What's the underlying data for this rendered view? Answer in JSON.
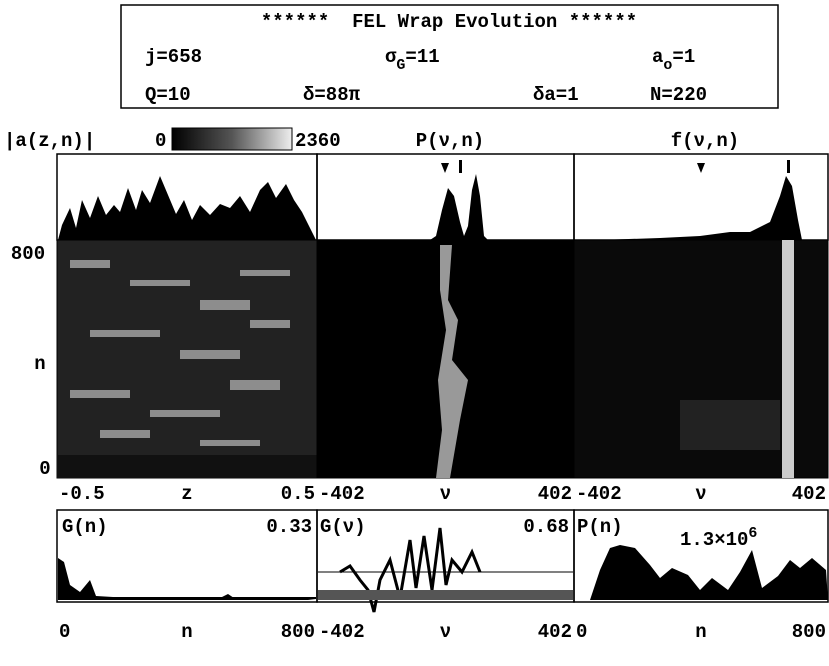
{
  "header": {
    "title": "******  FEL Wrap Evolution ******",
    "j": "j=658",
    "sigma": {
      "base": "σ",
      "sub": "G",
      "rest": "=11"
    },
    "a0": {
      "base": "a",
      "sub": "o",
      "rest": "=1"
    },
    "q": "Q=10",
    "delta": "δ=88π",
    "delta_a": "δa=1",
    "n": "N=220"
  },
  "colorbar": {
    "label": "|a(z,n)|",
    "min": "0",
    "max": "2360"
  },
  "top_titles": [
    "P(ν,n)",
    "f(ν,n)"
  ],
  "y_axis": {
    "top": "800",
    "mid": "n",
    "bottom": "0"
  },
  "x_axes": [
    {
      "left": "-0.5",
      "mid": "z",
      "right": "0.5"
    },
    {
      "left": "-402",
      "mid": "ν",
      "right": "402"
    },
    {
      "left": "-402",
      "mid": "ν",
      "right": "402"
    }
  ],
  "bottom_panels": [
    {
      "label": "G(n)",
      "value": "0.33"
    },
    {
      "label": "G(ν)",
      "value": "0.68"
    },
    {
      "label": "P(n)",
      "value": {
        "base": "1.3×10",
        "sup": "6"
      }
    }
  ],
  "bottom_axes": [
    {
      "left": "0",
      "mid": "n",
      "right": "800"
    },
    {
      "left": "-402",
      "mid": "ν",
      "right": "402"
    },
    {
      "left": "0",
      "mid": "n",
      "right": "800"
    }
  ]
}
